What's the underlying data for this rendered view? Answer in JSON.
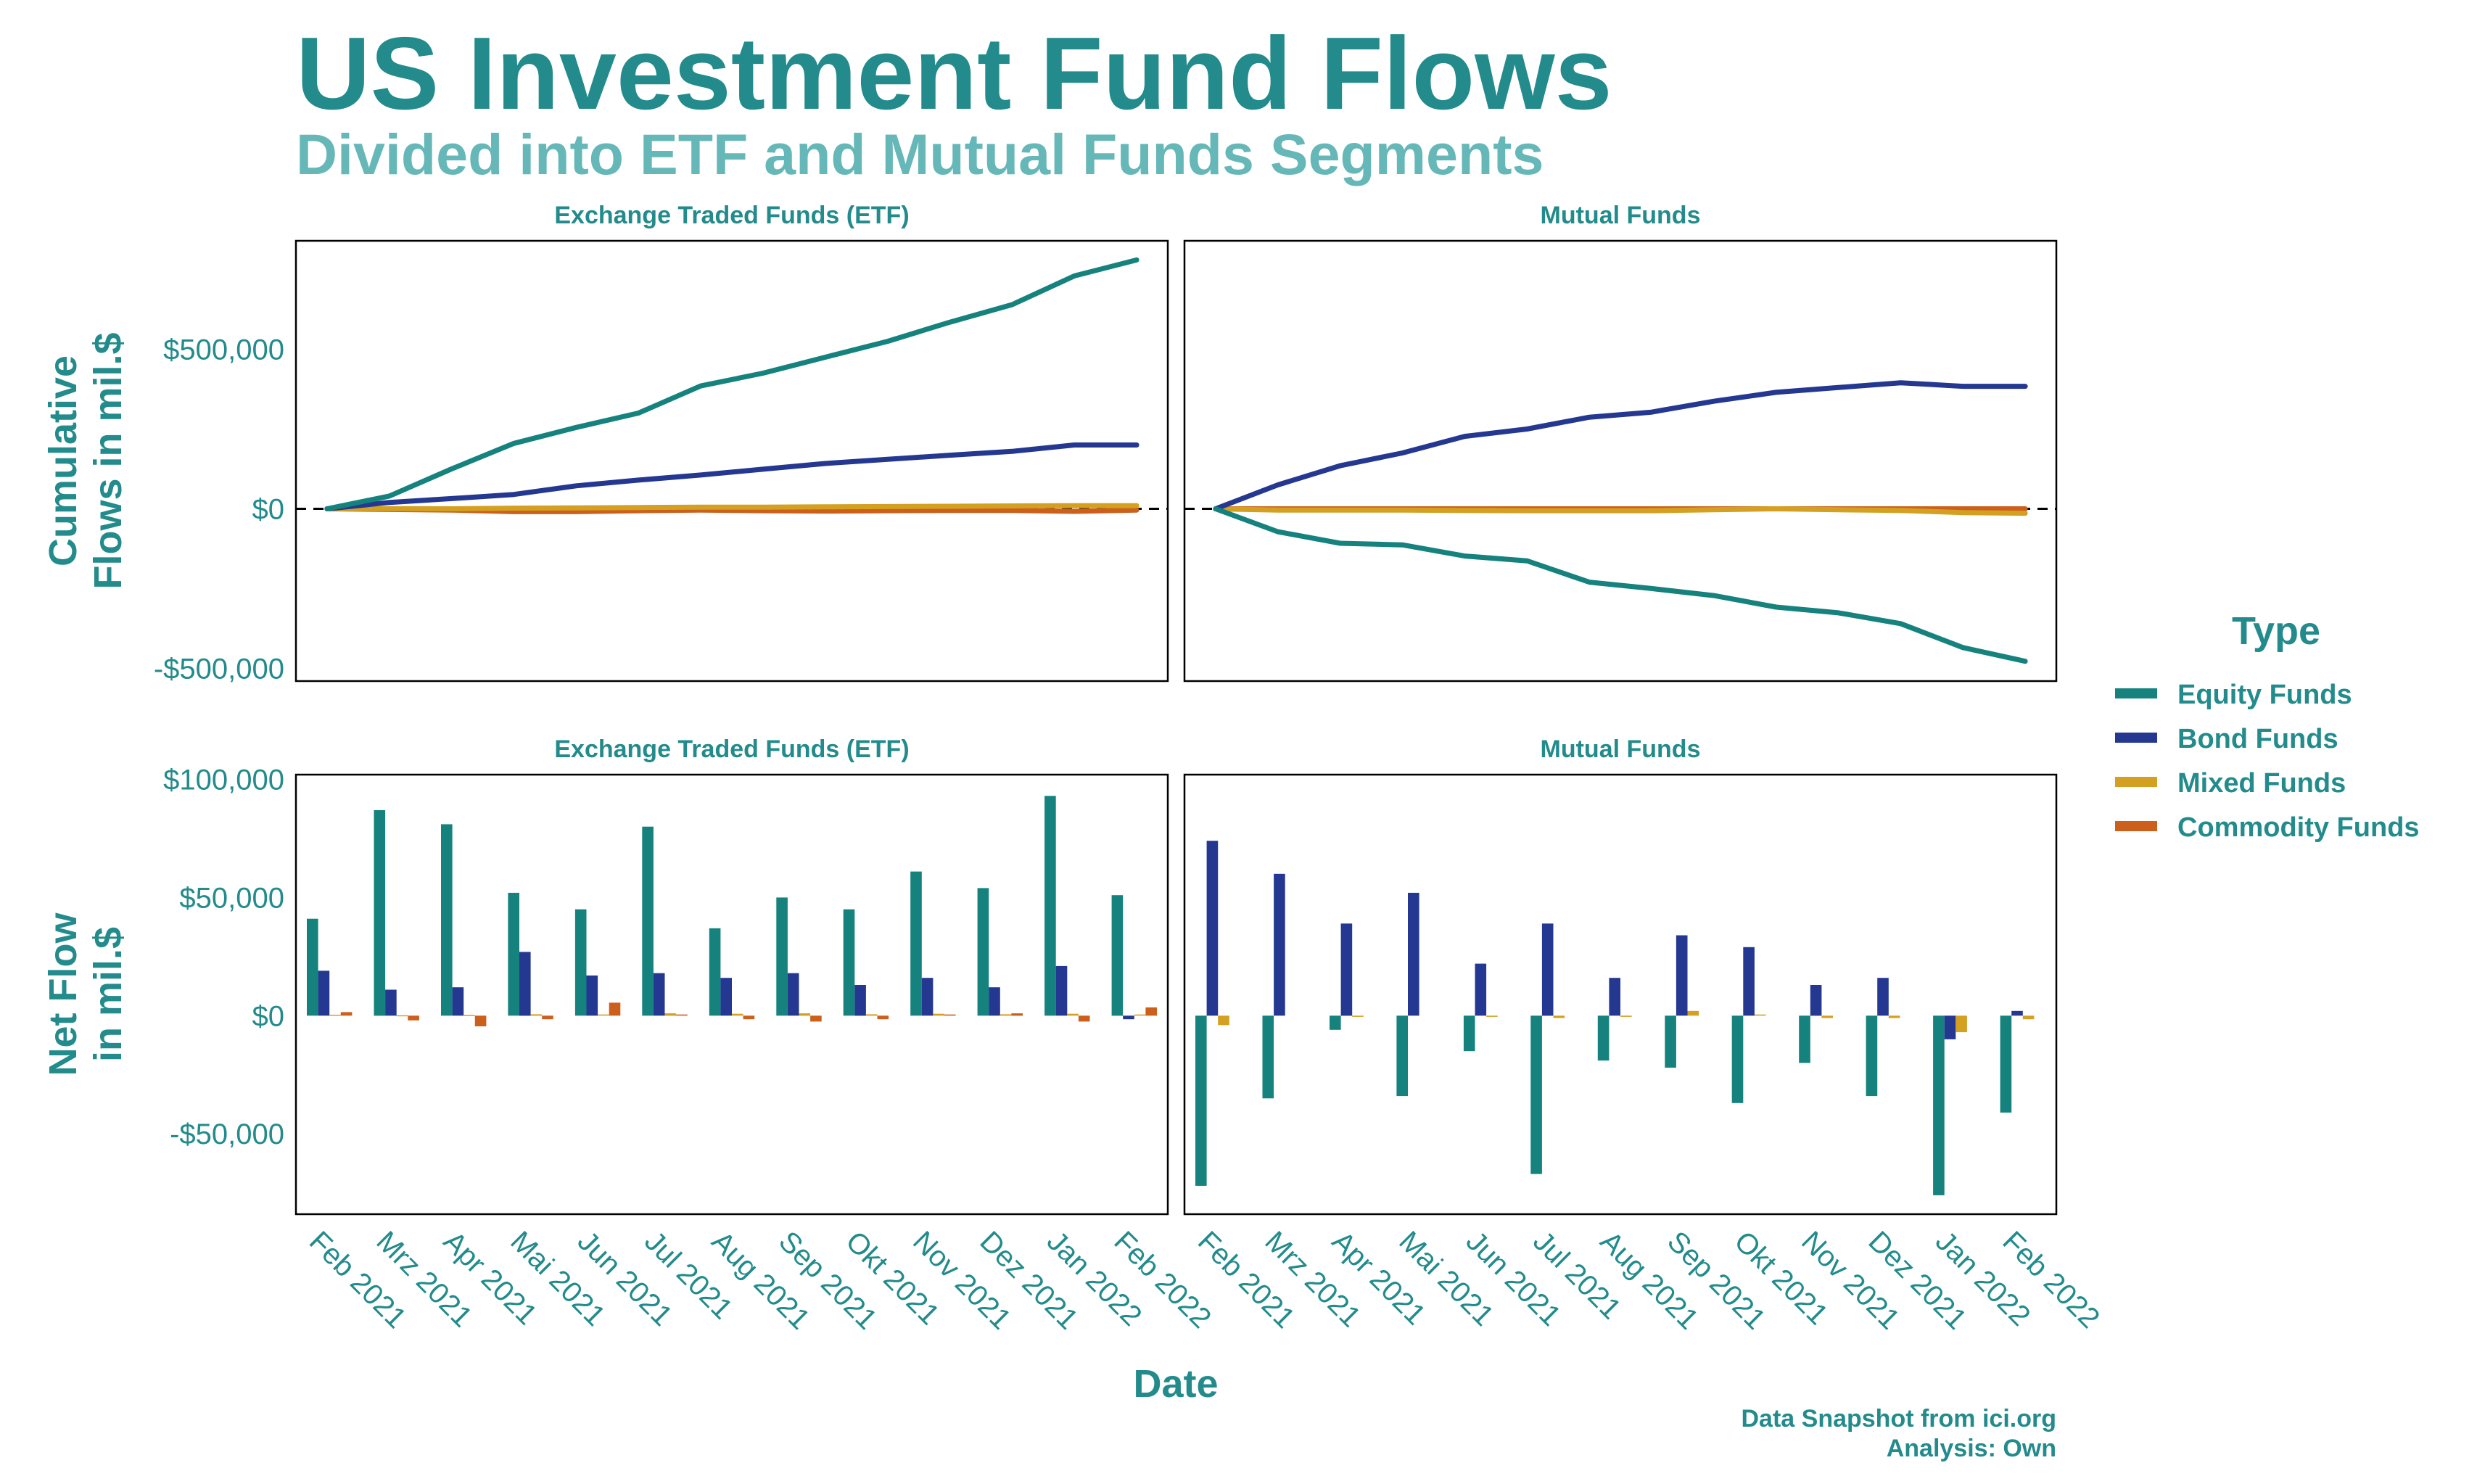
{
  "title": "US Investment Fund Flows",
  "subtitle": "Divided into ETF and Mutual Funds Segments",
  "caption": [
    "Data Snapshot from ici.org",
    "Analysis: Own"
  ],
  "x_axis_label": "Date",
  "colors": {
    "accent": "#238b8b",
    "subtitle": "#66b7b7",
    "equity": "#15827e",
    "bond": "#243891",
    "mixed": "#d4a021",
    "commodity": "#cc5f1b"
  },
  "legend": {
    "title": "Type",
    "position": "right",
    "items": [
      "Equity Funds",
      "Bond Funds",
      "Mixed Funds",
      "Commodity Funds"
    ]
  },
  "chart_data": [
    {
      "id": "etf-cumulative",
      "type": "line",
      "title": "Exchange Traded Funds (ETF)",
      "ylabel": [
        "Cumulative",
        "Flows in mil.$"
      ],
      "x": [
        "Feb 2021",
        "Mrz 2021",
        "Apr 2021",
        "Mai 2021",
        "Jun 2021",
        "Jul 2021",
        "Aug 2021",
        "Sep 2021",
        "Okt 2021",
        "Nov 2021",
        "Dez 2021",
        "Jan 2022",
        "Feb 2022",
        ""
      ],
      "ylim": [
        -540000,
        840000
      ],
      "yticks": [
        500000,
        0,
        -500000
      ],
      "ytick_labels": [
        "$500,000",
        "$0",
        "-$500,000"
      ],
      "reference_line": 0,
      "series": [
        {
          "name": "Equity Funds",
          "values": [
            0,
            40000,
            125000,
            205000,
            255000,
            300000,
            385000,
            425000,
            475000,
            525000,
            585000,
            640000,
            730000,
            780000
          ]
        },
        {
          "name": "Bond Funds",
          "values": [
            0,
            20000,
            32000,
            45000,
            72000,
            90000,
            106000,
            124000,
            142000,
            155000,
            168000,
            180000,
            200000,
            200000
          ]
        },
        {
          "name": "Mixed Funds",
          "values": [
            0,
            500,
            0,
            2000,
            3000,
            4000,
            5000,
            5000,
            6000,
            7000,
            8000,
            9000,
            10000,
            10000
          ]
        },
        {
          "name": "Commodity Funds",
          "values": [
            0,
            -2000,
            -4000,
            -9000,
            -9000,
            -6000,
            -4000,
            -6000,
            -7000,
            -6000,
            -5000,
            -5000,
            -8000,
            -4000
          ]
        }
      ]
    },
    {
      "id": "mf-cumulative",
      "type": "line",
      "title": "Mutual Funds",
      "x": [
        "Feb 2021",
        "Mrz 2021",
        "Apr 2021",
        "Mai 2021",
        "Jun 2021",
        "Jul 2021",
        "Aug 2021",
        "Sep 2021",
        "Okt 2021",
        "Nov 2021",
        "Dez 2021",
        "Jan 2022",
        "Feb 2022",
        ""
      ],
      "ylim": [
        -540000,
        840000
      ],
      "reference_line": 0,
      "series": [
        {
          "name": "Equity Funds",
          "values": [
            0,
            -72000,
            -108000,
            -113000,
            -148000,
            -163000,
            -230000,
            -250000,
            -272000,
            -308000,
            -326000,
            -360000,
            -435000,
            -478000
          ]
        },
        {
          "name": "Bond Funds",
          "values": [
            0,
            75000,
            135000,
            175000,
            227000,
            250000,
            287000,
            303000,
            337000,
            365000,
            380000,
            395000,
            384000,
            384000
          ]
        },
        {
          "name": "Mixed Funds",
          "values": [
            0,
            -4000,
            -4000,
            -4000,
            -5000,
            -6000,
            -6000,
            -6000,
            -3000,
            0,
            -3000,
            -5000,
            -12000,
            -14000
          ]
        },
        {
          "name": "Commodity Funds",
          "values": [
            0,
            0,
            0,
            0,
            0,
            0,
            0,
            0,
            0,
            0,
            0,
            0,
            0,
            0
          ]
        }
      ]
    },
    {
      "id": "etf-net",
      "type": "bar",
      "title": "Exchange Traded Funds (ETF)",
      "ylabel": [
        "Net Flow",
        "in mil.$"
      ],
      "categories": [
        "Feb 2021",
        "Mrz 2021",
        "Apr 2021",
        "Mai 2021",
        "Jun 2021",
        "Jul 2021",
        "Aug 2021",
        "Sep 2021",
        "Okt 2021",
        "Nov 2021",
        "Dez 2021",
        "Jan 2022",
        "Feb 2022"
      ],
      "ylim": [
        -84000,
        102000
      ],
      "yticks": [
        100000,
        50000,
        0,
        -50000
      ],
      "ytick_labels": [
        "$100,000",
        "$50,000",
        "$0",
        "-$50,000"
      ],
      "series": [
        {
          "name": "Equity Funds",
          "values": [
            41000,
            87000,
            81000,
            52000,
            45000,
            80000,
            37000,
            50000,
            45000,
            61000,
            54000,
            93000,
            51000
          ]
        },
        {
          "name": "Bond Funds",
          "values": [
            19000,
            11000,
            12000,
            27000,
            17000,
            18000,
            16000,
            18000,
            13000,
            16000,
            12000,
            21000,
            -1500
          ]
        },
        {
          "name": "Mixed Funds",
          "values": [
            400,
            200,
            300,
            600,
            500,
            1000,
            800,
            1000,
            600,
            800,
            600,
            800,
            500
          ]
        },
        {
          "name": "Commodity Funds",
          "values": [
            1500,
            -2000,
            -4500,
            -1500,
            5500,
            500,
            -1500,
            -2500,
            -1500,
            500,
            1000,
            -2500,
            3500
          ]
        }
      ]
    },
    {
      "id": "mf-net",
      "type": "bar",
      "title": "Mutual Funds",
      "categories": [
        "Feb 2021",
        "Mrz 2021",
        "Apr 2021",
        "Mai 2021",
        "Jun 2021",
        "Jul 2021",
        "Aug 2021",
        "Sep 2021",
        "Okt 2021",
        "Nov 2021",
        "Dez 2021",
        "Jan 2022",
        "Feb 2022"
      ],
      "ylim": [
        -84000,
        102000
      ],
      "series": [
        {
          "name": "Equity Funds",
          "values": [
            -72000,
            -35000,
            -6000,
            -34000,
            -15000,
            -67000,
            -19000,
            -22000,
            -37000,
            -20000,
            -34000,
            -76000,
            -41000
          ]
        },
        {
          "name": "Bond Funds",
          "values": [
            74000,
            60000,
            39000,
            52000,
            22000,
            39000,
            16000,
            34000,
            29000,
            13000,
            16000,
            -10000,
            2000
          ]
        },
        {
          "name": "Mixed Funds",
          "values": [
            -4000,
            0,
            -500,
            0,
            -500,
            -1000,
            -500,
            2000,
            500,
            -1000,
            -1000,
            -7000,
            -1500
          ]
        },
        {
          "name": "Commodity Funds",
          "values": [
            0,
            0,
            0,
            0,
            0,
            0,
            0,
            0,
            0,
            0,
            0,
            0,
            0
          ]
        }
      ]
    }
  ]
}
